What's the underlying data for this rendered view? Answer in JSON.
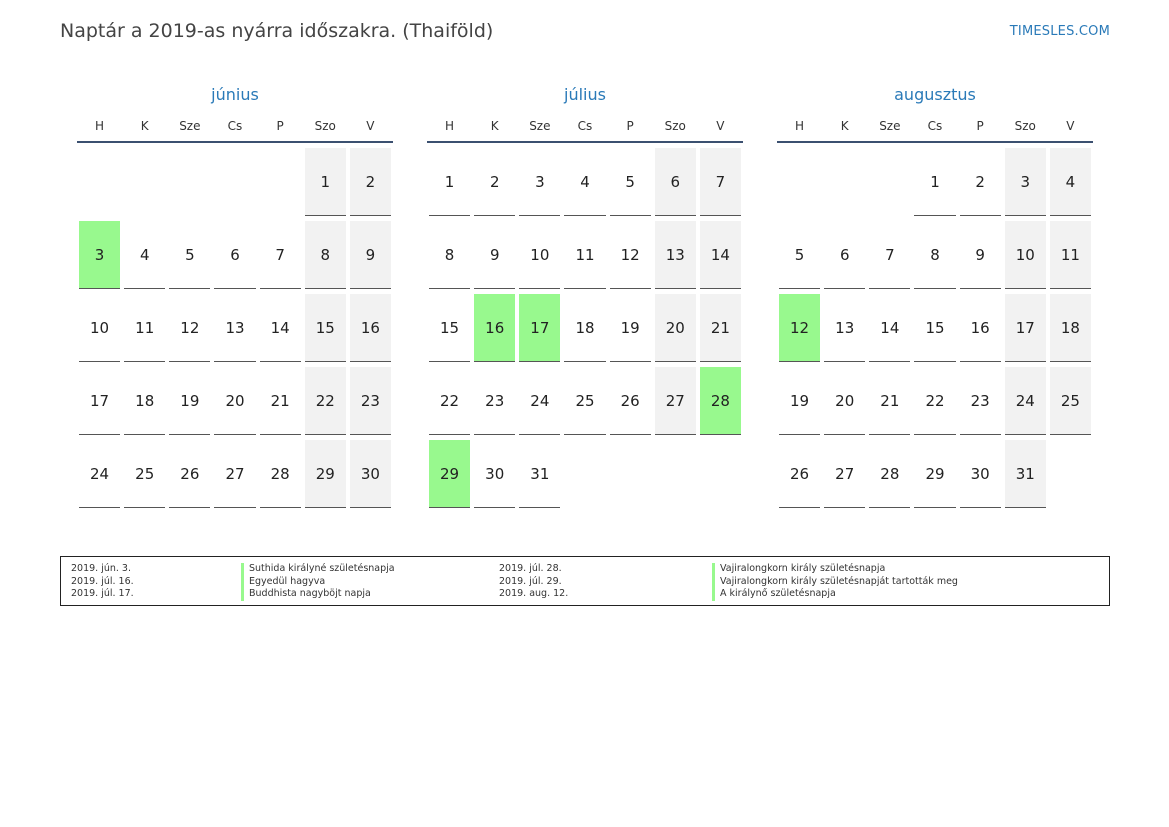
{
  "header": {
    "title": "Naptár a 2019-as nyárra időszakra. (Thaiföld)",
    "site": "TIMESLES.COM"
  },
  "weekday_labels": [
    "H",
    "K",
    "Sze",
    "Cs",
    "P",
    "Szo",
    "V"
  ],
  "months": [
    {
      "name": "június",
      "weeks": [
        [
          "",
          "",
          "",
          "",
          "",
          "1",
          "2"
        ],
        [
          "3",
          "4",
          "5",
          "6",
          "7",
          "8",
          "9"
        ],
        [
          "10",
          "11",
          "12",
          "13",
          "14",
          "15",
          "16"
        ],
        [
          "17",
          "18",
          "19",
          "20",
          "21",
          "22",
          "23"
        ],
        [
          "24",
          "25",
          "26",
          "27",
          "28",
          "29",
          "30"
        ]
      ],
      "holidays": [
        "3"
      ]
    },
    {
      "name": "július",
      "weeks": [
        [
          "1",
          "2",
          "3",
          "4",
          "5",
          "6",
          "7"
        ],
        [
          "8",
          "9",
          "10",
          "11",
          "12",
          "13",
          "14"
        ],
        [
          "15",
          "16",
          "17",
          "18",
          "19",
          "20",
          "21"
        ],
        [
          "22",
          "23",
          "24",
          "25",
          "26",
          "27",
          "28"
        ],
        [
          "29",
          "30",
          "31",
          "",
          "",
          "",
          ""
        ]
      ],
      "holidays": [
        "16",
        "17",
        "28",
        "29"
      ]
    },
    {
      "name": "augusztus",
      "weeks": [
        [
          "",
          "",
          "",
          "1",
          "2",
          "3",
          "4"
        ],
        [
          "5",
          "6",
          "7",
          "8",
          "9",
          "10",
          "11"
        ],
        [
          "12",
          "13",
          "14",
          "15",
          "16",
          "17",
          "18"
        ],
        [
          "19",
          "20",
          "21",
          "22",
          "23",
          "24",
          "25"
        ],
        [
          "26",
          "27",
          "28",
          "29",
          "30",
          "31",
          ""
        ]
      ],
      "holidays": [
        "12"
      ]
    }
  ],
  "colors": {
    "holiday": "#98f98e",
    "weekend": "#f2f2f2",
    "accent": "#2a7ab8",
    "header_rule": "#3b5070"
  },
  "legend": {
    "left": [
      {
        "date": "2019. jún. 3.",
        "name": "Suthida királyné születésnapja"
      },
      {
        "date": "2019. júl. 16.",
        "name": "Egyedül hagyva"
      },
      {
        "date": "2019. júl. 17.",
        "name": "Buddhista nagyböjt napja"
      }
    ],
    "right": [
      {
        "date": "2019. júl. 28.",
        "name": "Vajiralongkorn király születésnapja"
      },
      {
        "date": "2019. júl. 29.",
        "name": "Vajiralongkorn király születésnapját tartották meg"
      },
      {
        "date": "2019. aug. 12.",
        "name": "A királynő születésnapja"
      }
    ]
  }
}
